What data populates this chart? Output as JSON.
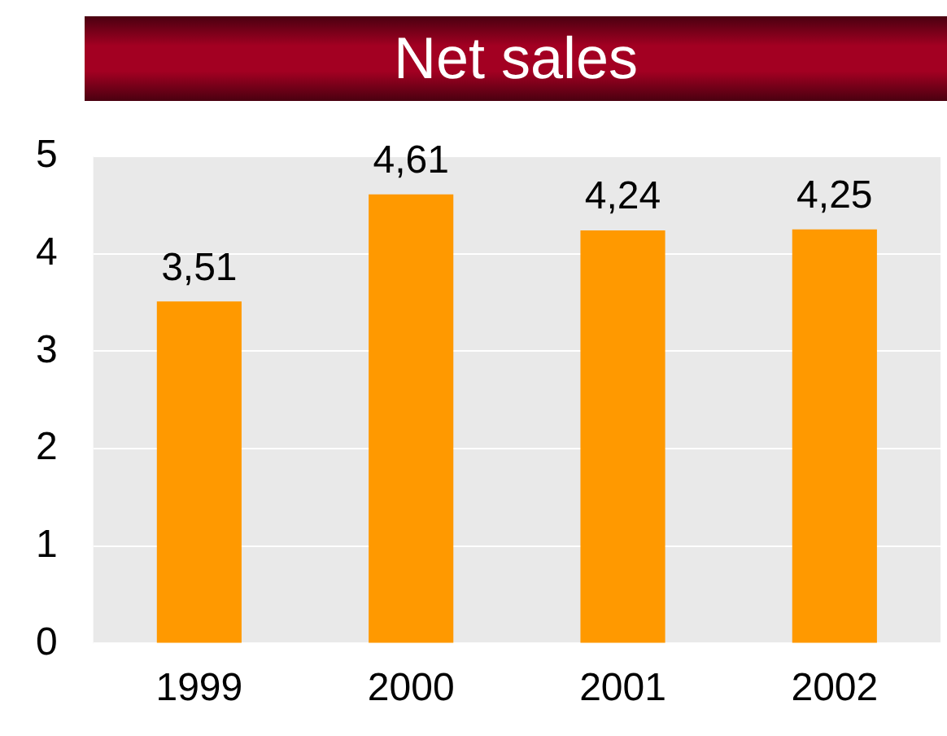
{
  "chart_data": {
    "type": "bar",
    "title": "Net sales",
    "categories": [
      "1999",
      "2000",
      "2001",
      "2002"
    ],
    "values": [
      3.51,
      4.61,
      4.24,
      4.25
    ],
    "color": "#ff9900",
    "value_labels": [
      "3,51",
      "4,61",
      "4,24",
      "4,25"
    ],
    "ylim": [
      0,
      5
    ],
    "yticks": [
      0,
      1,
      2,
      3,
      4,
      5
    ],
    "grid": "y"
  }
}
